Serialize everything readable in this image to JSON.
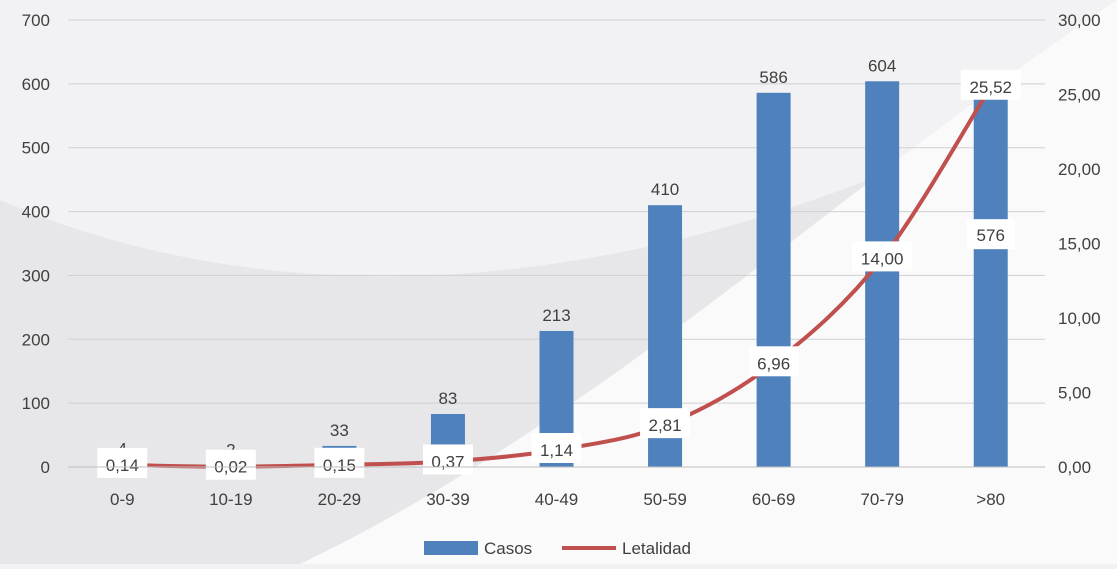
{
  "chart_data": {
    "type": "bar",
    "title": "",
    "xlabel": "",
    "ylabel": "",
    "categories": [
      "0-9",
      "10-19",
      "20-29",
      "30-39",
      "40-49",
      "50-59",
      "60-69",
      "70-79",
      ">80"
    ],
    "series": [
      {
        "name": "Casos",
        "type": "bar",
        "axis": "left",
        "color": "#4f81bd",
        "values": [
          4,
          2,
          33,
          83,
          213,
          410,
          586,
          604,
          576
        ],
        "value_labels": [
          "4",
          "2",
          "33",
          "83",
          "213",
          "410",
          "586",
          "604",
          "576"
        ]
      },
      {
        "name": "Letalidad",
        "type": "line",
        "axis": "right",
        "color": "#c0504d",
        "values": [
          0.14,
          0.02,
          0.15,
          0.37,
          1.14,
          2.81,
          6.96,
          14.0,
          25.52
        ],
        "value_labels": [
          "0,14",
          "0,02",
          "0,15",
          "0,37",
          "1,14",
          "2,81",
          "6,96",
          "14,00",
          "25,52"
        ]
      }
    ],
    "y_left": {
      "ylim": [
        0,
        700
      ],
      "ticks": [
        0,
        100,
        200,
        300,
        400,
        500,
        600,
        700
      ],
      "tick_labels": [
        "0",
        "100",
        "200",
        "300",
        "400",
        "500",
        "600",
        "700"
      ]
    },
    "y_right": {
      "ylim": [
        0,
        30
      ],
      "ticks": [
        0,
        5,
        10,
        15,
        20,
        25,
        30
      ],
      "tick_labels": [
        "0,00",
        "5,00",
        "10,00",
        "15,00",
        "20,00",
        "25,00",
        "30,00"
      ]
    },
    "grid": true,
    "legend_position": "bottom"
  }
}
